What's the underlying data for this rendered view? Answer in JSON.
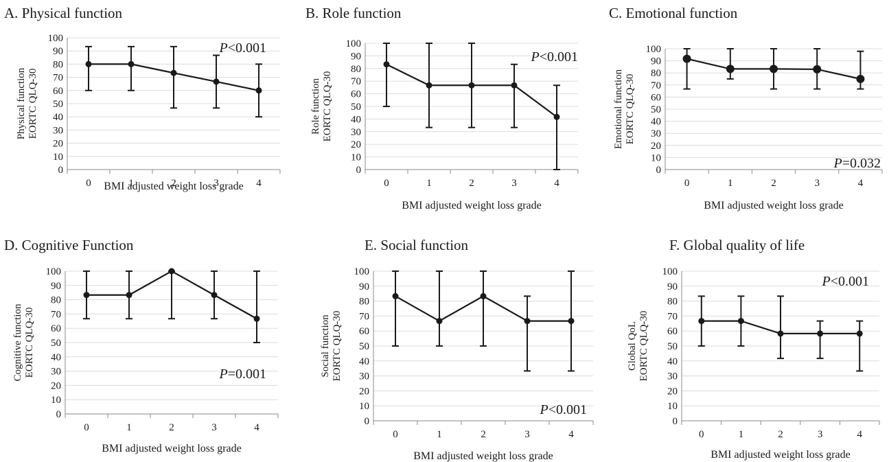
{
  "chart_data": [
    {
      "type": "line",
      "title": "A. Physical function",
      "ylabel": [
        "Physical function",
        "EORTC QLQ-30"
      ],
      "xlabel": "BMI adjusted weight loss grade",
      "categories": [
        "0",
        "1",
        "2",
        "3",
        "4"
      ],
      "values": [
        80,
        80,
        73.3,
        66.7,
        60
      ],
      "lower": [
        60,
        60,
        46.7,
        46.7,
        40
      ],
      "upper": [
        93.3,
        93.3,
        93.3,
        86.7,
        80
      ],
      "ylim": [
        0,
        100
      ],
      "yticks": [
        "0",
        "10",
        "20",
        "30",
        "40",
        "50",
        "60",
        "70",
        "80",
        "90",
        "100"
      ],
      "p_value": {
        "italic": "P",
        "text": "<0.001",
        "position": "top-right"
      },
      "marker_size": "small",
      "grid": true
    },
    {
      "type": "line",
      "title": "B. Role function",
      "ylabel": [
        "Role function",
        "EORTC QLQ-30"
      ],
      "xlabel": "BMI adjusted weight loss grade",
      "categories": [
        "0",
        "1",
        "2",
        "3",
        "4"
      ],
      "values": [
        83.3,
        66.7,
        66.7,
        66.7,
        41.7
      ],
      "lower": [
        50,
        33.3,
        33.3,
        33.3,
        0
      ],
      "upper": [
        100,
        100,
        100,
        83.3,
        66.7
      ],
      "ylim": [
        0,
        100
      ],
      "yticks": [
        "0",
        "10",
        "20",
        "30",
        "40",
        "50",
        "60",
        "70",
        "80",
        "90",
        "100"
      ],
      "p_value": {
        "italic": "P",
        "text": "<0.001",
        "position": "top-right"
      },
      "marker_size": "small",
      "grid": true
    },
    {
      "type": "line",
      "title": "C. Emotional function",
      "ylabel": [
        "Emotional function",
        "EORTC QLQ-30"
      ],
      "xlabel": "BMI adjusted weight loss grade",
      "categories": [
        "0",
        "1",
        "2",
        "3",
        "4"
      ],
      "values": [
        91.7,
        83.3,
        83.3,
        83.0,
        75
      ],
      "lower": [
        66.7,
        75,
        66.7,
        66.7,
        66.7
      ],
      "upper": [
        100,
        100,
        100,
        100,
        97.9
      ],
      "ylim": [
        0,
        100
      ],
      "yticks": [
        "0",
        "10",
        "20",
        "30",
        "40",
        "50",
        "60",
        "70",
        "80",
        "90",
        "100"
      ],
      "p_value": {
        "italic": "P",
        "text": "=0.032",
        "position": "bottom-right"
      },
      "marker_size": "large",
      "grid": true
    },
    {
      "type": "line",
      "title": "D. Cognitive Function",
      "ylabel": [
        "Cognitive function",
        "EORTC QLQ-30"
      ],
      "xlabel": "BMI adjusted weight loss grade",
      "categories": [
        "0",
        "1",
        "2",
        "3",
        "4"
      ],
      "values": [
        83.3,
        83.3,
        100,
        83.3,
        66.7
      ],
      "lower": [
        66.7,
        66.7,
        66.7,
        66.7,
        50
      ],
      "upper": [
        100,
        100,
        100,
        100,
        100
      ],
      "ylim": [
        0,
        100
      ],
      "yticks": [
        "0",
        "10",
        "20",
        "30",
        "40",
        "50",
        "60",
        "70",
        "80",
        "90",
        "100"
      ],
      "p_value": {
        "italic": "P",
        "text": "=0.001",
        "position": "middle-right"
      },
      "marker_size": "small",
      "grid": true
    },
    {
      "type": "line",
      "title": "E. Social function",
      "ylabel": [
        "Social function",
        "EORTC QLQ-30"
      ],
      "xlabel": "BMI adjusted weight loss grade",
      "categories": [
        "0",
        "1",
        "2",
        "3",
        "4"
      ],
      "values": [
        83.3,
        66.7,
        83.3,
        66.7,
        66.7
      ],
      "lower": [
        50,
        50,
        50,
        33.3,
        33.3
      ],
      "upper": [
        100,
        100,
        100,
        83.3,
        100
      ],
      "ylim": [
        0,
        100
      ],
      "yticks": [
        "0",
        "10",
        "20",
        "30",
        "40",
        "50",
        "60",
        "70",
        "80",
        "90",
        "100"
      ],
      "p_value": {
        "italic": "P",
        "text": "<0.001",
        "position": "bottom-right"
      },
      "marker_size": "small",
      "grid": true
    },
    {
      "type": "line",
      "title": "F. Global quality of life",
      "ylabel": [
        "Global QoL",
        "EORTC QLQ-30"
      ],
      "xlabel": "BMI adjusted weight loss grade",
      "categories": [
        "0",
        "1",
        "2",
        "3",
        "4"
      ],
      "values": [
        66.7,
        66.7,
        58.3,
        58.3,
        58.3
      ],
      "lower": [
        50,
        50,
        41.7,
        41.7,
        33.3
      ],
      "upper": [
        83.3,
        83.3,
        83.3,
        66.7,
        66.7
      ],
      "ylim": [
        0,
        100
      ],
      "yticks": [
        "0",
        "10",
        "20",
        "30",
        "40",
        "50",
        "60",
        "70",
        "80",
        "90",
        "100"
      ],
      "p_value": {
        "italic": "P",
        "text": "<0.001",
        "position": "top-right"
      },
      "marker_size": "small",
      "grid": true
    }
  ]
}
